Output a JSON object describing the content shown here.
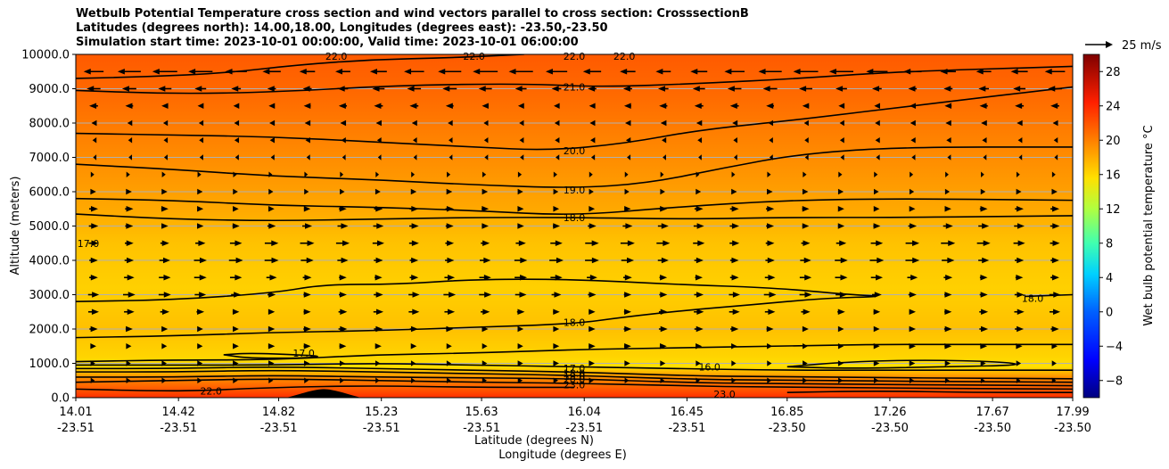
{
  "chart_data": {
    "type": "heatmap",
    "title_lines": [
      "Wetbulb Potential Temperature cross section and wind vectors parallel to cross section: CrosssectionB",
      "Latitudes (degrees north): 14.00,18.00, Longitudes (degrees east): -23.50,-23.50",
      "Simulation start time: 2023-10-01 00:00:00, Valid time: 2023-10-01 06:00:00"
    ],
    "ylabel": "Altitude (meters)",
    "xlabel_lat": "Latitude (degrees N)",
    "xlabel_lon": "Longitude (degrees E)",
    "ylim": [
      0,
      10000
    ],
    "y_ticks": [
      "0.0",
      "1000.0",
      "2000.0",
      "3000.0",
      "4000.0",
      "5000.0",
      "6000.0",
      "7000.0",
      "8000.0",
      "9000.0",
      "10000.0"
    ],
    "x_ticks": [
      {
        "lat": "14.01",
        "lon": "-23.51"
      },
      {
        "lat": "14.42",
        "lon": "-23.51"
      },
      {
        "lat": "14.82",
        "lon": "-23.51"
      },
      {
        "lat": "15.23",
        "lon": "-23.51"
      },
      {
        "lat": "15.63",
        "lon": "-23.51"
      },
      {
        "lat": "16.04",
        "lon": "-23.51"
      },
      {
        "lat": "16.45",
        "lon": "-23.51"
      },
      {
        "lat": "16.85",
        "lon": "-23.50"
      },
      {
        "lat": "17.26",
        "lon": "-23.50"
      },
      {
        "lat": "17.67",
        "lon": "-23.50"
      },
      {
        "lat": "17.99",
        "lon": "-23.50"
      }
    ],
    "grid": "horizontal",
    "colorbar": {
      "label": "Wet bulb potential temperature °C",
      "range": [
        -10,
        30
      ],
      "ticks": [
        "−8",
        "−4",
        "0",
        "4",
        "8",
        "12",
        "16",
        "20",
        "24",
        "28"
      ],
      "colormap": "jet"
    },
    "vector_key": "25 m/s",
    "contour_labels": [
      {
        "text": "22.0",
        "lat": 15.05,
        "alt": 9950
      },
      {
        "text": "22.0",
        "lat": 15.6,
        "alt": 9950
      },
      {
        "text": "22.0",
        "lat": 16.0,
        "alt": 9950
      },
      {
        "text": "22.0",
        "lat": 16.2,
        "alt": 9950
      },
      {
        "text": "21.0",
        "lat": 16.0,
        "alt": 9050
      },
      {
        "text": "20.0",
        "lat": 16.0,
        "alt": 7200
      },
      {
        "text": "19.0",
        "lat": 16.0,
        "alt": 6050
      },
      {
        "text": "18.0",
        "lat": 16.0,
        "alt": 5250
      },
      {
        "text": "17.0",
        "lat": 14.06,
        "alt": 4500
      },
      {
        "text": "18.0",
        "lat": 17.83,
        "alt": 2900
      },
      {
        "text": "18.0",
        "lat": 16.0,
        "alt": 2200
      },
      {
        "text": "17.0",
        "lat": 14.92,
        "alt": 1300
      },
      {
        "text": "17.0",
        "lat": 16.0,
        "alt": 860
      },
      {
        "text": "16.0",
        "lat": 16.54,
        "alt": 900
      },
      {
        "text": "18.0",
        "lat": 16.0,
        "alt": 720
      },
      {
        "text": "19.0",
        "lat": 16.0,
        "alt": 620
      },
      {
        "text": "20.0",
        "lat": 16.0,
        "alt": 530
      },
      {
        "text": "23.0",
        "lat": 16.0,
        "alt": 380
      },
      {
        "text": "23.0",
        "lat": 16.6,
        "alt": 100
      },
      {
        "text": "22.0",
        "lat": 14.55,
        "alt": 200
      }
    ],
    "isolines": [
      {
        "value": 22,
        "points": [
          [
            14.01,
            9300
          ],
          [
            14.3,
            9350
          ],
          [
            14.6,
            9450
          ],
          [
            14.9,
            9700
          ],
          [
            15.2,
            9850
          ],
          [
            15.5,
            9900
          ],
          [
            15.8,
            10000
          ]
        ]
      },
      {
        "value": 21,
        "points": [
          [
            14.01,
            8950
          ],
          [
            14.4,
            8850
          ],
          [
            14.8,
            8900
          ],
          [
            15.3,
            9100
          ],
          [
            15.8,
            9150
          ],
          [
            16.1,
            9050
          ],
          [
            16.5,
            9150
          ],
          [
            16.9,
            9300
          ],
          [
            17.3,
            9500
          ],
          [
            17.99,
            9650
          ]
        ]
      },
      {
        "value": 20,
        "points": [
          [
            14.01,
            7700
          ],
          [
            14.4,
            7650
          ],
          [
            14.8,
            7600
          ],
          [
            15.2,
            7450
          ],
          [
            15.6,
            7300
          ],
          [
            15.9,
            7200
          ],
          [
            16.2,
            7400
          ],
          [
            16.5,
            7800
          ],
          [
            16.9,
            8100
          ],
          [
            17.4,
            8550
          ],
          [
            17.99,
            9050
          ]
        ]
      },
      {
        "value": 19,
        "points": [
          [
            14.01,
            6800
          ],
          [
            14.4,
            6650
          ],
          [
            14.8,
            6450
          ],
          [
            15.2,
            6350
          ],
          [
            15.6,
            6200
          ],
          [
            16.0,
            6100
          ],
          [
            16.3,
            6250
          ],
          [
            16.6,
            6700
          ],
          [
            16.9,
            7100
          ],
          [
            17.3,
            7300
          ],
          [
            17.99,
            7300
          ]
        ]
      },
      {
        "value": 18,
        "points": [
          [
            14.01,
            5800
          ],
          [
            14.4,
            5750
          ],
          [
            14.8,
            5600
          ],
          [
            15.2,
            5550
          ],
          [
            15.6,
            5450
          ],
          [
            16.0,
            5300
          ],
          [
            16.4,
            5550
          ],
          [
            16.85,
            5750
          ],
          [
            17.3,
            5800
          ],
          [
            17.99,
            5750
          ]
        ]
      },
      {
        "value": 18,
        "points": [
          [
            14.01,
            5350
          ],
          [
            14.4,
            5200
          ],
          [
            14.8,
            5150
          ],
          [
            15.2,
            5200
          ],
          [
            15.6,
            5250
          ],
          [
            16.0,
            5250
          ],
          [
            16.45,
            5200
          ],
          [
            16.85,
            5250
          ],
          [
            17.3,
            5250
          ],
          [
            17.99,
            5300
          ]
        ]
      },
      {
        "value": 18,
        "points": [
          [
            14.01,
            2800
          ],
          [
            14.4,
            2850
          ],
          [
            14.8,
            3050
          ],
          [
            15.0,
            3300
          ],
          [
            15.3,
            3300
          ],
          [
            15.6,
            3450
          ],
          [
            16.0,
            3450
          ],
          [
            16.4,
            3300
          ],
          [
            16.8,
            3200
          ],
          [
            17.1,
            3000
          ],
          [
            17.25,
            2950
          ],
          [
            17.0,
            2900
          ],
          [
            16.7,
            2700
          ],
          [
            16.45,
            2550
          ],
          [
            16.2,
            2350
          ],
          [
            16.0,
            2150
          ],
          [
            15.6,
            2050
          ],
          [
            15.2,
            1950
          ],
          [
            14.8,
            1900
          ],
          [
            14.4,
            1800
          ],
          [
            14.01,
            1750
          ]
        ]
      },
      {
        "value": 18,
        "points": [
          [
            17.8,
            2950
          ],
          [
            17.99,
            3000
          ]
        ]
      },
      {
        "value": 18,
        "points": [
          [
            14.01,
            1050
          ],
          [
            14.4,
            1100
          ],
          [
            14.8,
            1100
          ],
          [
            15.2,
            1250
          ],
          [
            15.6,
            1300
          ],
          [
            16.0,
            1400
          ],
          [
            16.4,
            1450
          ],
          [
            16.8,
            1500
          ],
          [
            17.2,
            1550
          ],
          [
            17.6,
            1550
          ],
          [
            17.99,
            1550
          ]
        ]
      },
      {
        "value": 17,
        "points": [
          [
            14.6,
            1250
          ],
          [
            14.7,
            1150
          ],
          [
            14.9,
            1150
          ],
          [
            15.0,
            1200
          ],
          [
            14.9,
            1250
          ],
          [
            14.7,
            1300
          ],
          [
            14.6,
            1250
          ]
        ]
      },
      {
        "value": 16,
        "points": [
          [
            16.85,
            900
          ],
          [
            17.1,
            1050
          ],
          [
            17.4,
            1100
          ],
          [
            17.7,
            1050
          ],
          [
            17.8,
            950
          ],
          [
            17.5,
            900
          ],
          [
            17.1,
            850
          ],
          [
            16.85,
            900
          ]
        ]
      },
      {
        "value": 17,
        "points": [
          [
            14.01,
            950
          ],
          [
            14.4,
            950
          ],
          [
            14.8,
            950
          ],
          [
            15.2,
            1000
          ],
          [
            15.6,
            950
          ],
          [
            16.0,
            900
          ],
          [
            16.4,
            850
          ],
          [
            16.8,
            800
          ],
          [
            17.2,
            800
          ],
          [
            17.99,
            800
          ]
        ]
      },
      {
        "value": 18,
        "points": [
          [
            14.01,
            850
          ],
          [
            14.4,
            850
          ],
          [
            14.8,
            900
          ],
          [
            15.2,
            850
          ],
          [
            15.6,
            800
          ],
          [
            16.0,
            750
          ],
          [
            16.4,
            650
          ],
          [
            16.8,
            600
          ],
          [
            17.99,
            550
          ]
        ]
      },
      {
        "value": 19,
        "points": [
          [
            14.01,
            750
          ],
          [
            14.4,
            750
          ],
          [
            14.8,
            800
          ],
          [
            15.2,
            750
          ],
          [
            15.6,
            700
          ],
          [
            16.0,
            650
          ],
          [
            16.4,
            550
          ],
          [
            16.8,
            500
          ],
          [
            17.99,
            450
          ]
        ]
      },
      {
        "value": 20,
        "points": [
          [
            14.01,
            600
          ],
          [
            14.4,
            600
          ],
          [
            14.8,
            650
          ],
          [
            15.2,
            600
          ],
          [
            15.6,
            580
          ],
          [
            16.0,
            550
          ],
          [
            16.4,
            450
          ],
          [
            16.8,
            400
          ],
          [
            17.99,
            350
          ]
        ]
      },
      {
        "value": 23,
        "points": [
          [
            14.01,
            450
          ],
          [
            14.4,
            500
          ],
          [
            14.8,
            550
          ],
          [
            15.2,
            500
          ],
          [
            15.6,
            450
          ],
          [
            16.0,
            420
          ],
          [
            16.4,
            350
          ],
          [
            16.8,
            300
          ],
          [
            17.99,
            250
          ]
        ]
      },
      {
        "value": 22,
        "points": [
          [
            14.01,
            250
          ],
          [
            14.3,
            200
          ],
          [
            14.5,
            200
          ],
          [
            14.8,
            300
          ],
          [
            15.2,
            350
          ],
          [
            15.6,
            300
          ],
          [
            16.0,
            300
          ]
        ]
      },
      {
        "value": 23,
        "points": [
          [
            16.85,
            150
          ],
          [
            17.2,
            200
          ],
          [
            17.6,
            150
          ],
          [
            17.99,
            150
          ]
        ]
      }
    ],
    "terrain": {
      "lat_start": 14.85,
      "lat_end": 15.15,
      "peak_lat": 15.0,
      "peak_alt": 250
    },
    "wind": {
      "description": "u-component parallel to section, m/s (positive = southward-to-northward direction of increasing latitude)",
      "levels_alt": [
        9500,
        9000,
        8500,
        8000,
        7500,
        7000,
        6500,
        6000,
        5500,
        5000,
        4500,
        4000,
        3500,
        3000,
        2500,
        2000,
        1500,
        1000,
        500
      ],
      "speed_by_level": [
        -14,
        -8,
        -5,
        -3,
        -2,
        -1,
        1,
        3,
        5,
        6,
        8,
        8,
        7,
        7,
        6,
        5,
        4,
        3,
        2
      ]
    }
  }
}
